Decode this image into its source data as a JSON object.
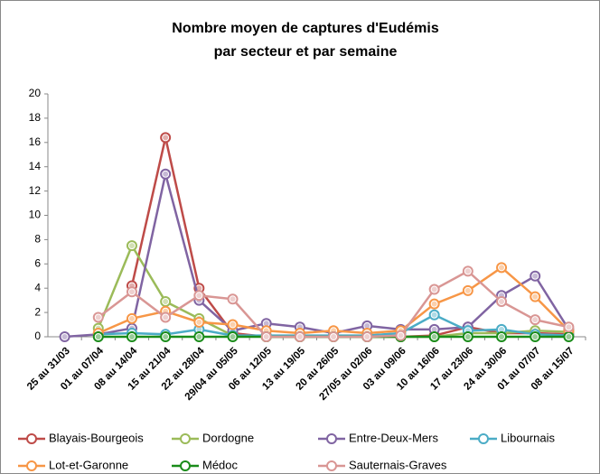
{
  "chart_data": {
    "type": "line",
    "title": "Nombre moyen de captures d'Eudémis",
    "subtitle": "par secteur et par semaine",
    "categories": [
      "25 au 31/03",
      "01 au 07/04",
      "08 au 14/04",
      "15 au 21/04",
      "22 au 28/04",
      "29/04 au 05/05",
      "06 au 12/05",
      "13 au 19/05",
      "20 au 26/05",
      "27/05 au 02/06",
      "03 au 09/06",
      "10 au 16/06",
      "17 au 23/06",
      "24 au 30/06",
      "01 au 07/07",
      "08 au 15/07"
    ],
    "series": [
      {
        "name": "Blayais-Bourgeois",
        "color": "#be4b48",
        "values": [
          null,
          null,
          4.2,
          16.4,
          4.0,
          0.3,
          0,
          0,
          0,
          0,
          0,
          0.1,
          0.8,
          0.3,
          0.3,
          0.2
        ]
      },
      {
        "name": "Dordogne",
        "color": "#9bbb59",
        "values": [
          null,
          0.7,
          7.5,
          2.9,
          1.5,
          0.1,
          0,
          0,
          0,
          0,
          0,
          0,
          0.3,
          0.3,
          0.5,
          0.4
        ]
      },
      {
        "name": "Entre-Deux-Mers",
        "color": "#8064a2",
        "values": [
          0,
          0.2,
          0.7,
          13.4,
          3.0,
          0.5,
          1.1,
          0.8,
          0.3,
          0.9,
          0.6,
          0.6,
          0.8,
          3.4,
          5.0,
          0.6
        ]
      },
      {
        "name": "Libournais",
        "color": "#4bacc6",
        "values": [
          null,
          0.2,
          0.3,
          0.2,
          0.6,
          0.1,
          0.1,
          0.1,
          0.1,
          0.1,
          0.3,
          1.8,
          0.5,
          0.6,
          0.2,
          0.1
        ]
      },
      {
        "name": "Lot-et-Garonne",
        "color": "#f79646",
        "values": [
          null,
          0.3,
          1.5,
          2.1,
          1.2,
          1.0,
          0.5,
          0.3,
          0.5,
          0.3,
          0.5,
          2.7,
          3.8,
          5.7,
          3.3,
          0.5
        ]
      },
      {
        "name": "Médoc",
        "color": "#1a8c1a",
        "values": [
          null,
          0,
          0,
          0,
          0,
          0,
          0,
          0,
          0,
          0,
          0,
          0,
          0,
          0,
          0,
          0
        ]
      },
      {
        "name": "Sauternais-Graves",
        "color": "#d99694",
        "values": [
          null,
          1.6,
          3.7,
          1.6,
          3.4,
          3.1,
          0,
          0,
          0,
          0,
          0.1,
          3.9,
          5.4,
          2.9,
          1.4,
          0.8
        ]
      }
    ],
    "ylim": [
      0,
      20
    ],
    "yticks": [
      0,
      2,
      4,
      6,
      8,
      10,
      12,
      14,
      16,
      18,
      20
    ],
    "grid": false,
    "legend": "bottom"
  }
}
